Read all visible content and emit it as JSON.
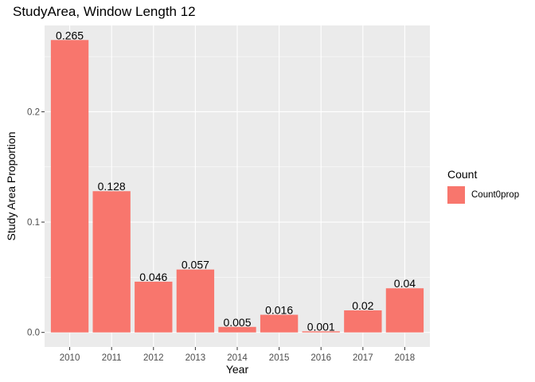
{
  "chart_data": {
    "type": "bar",
    "title": "StudyArea, Window Length 12",
    "xlabel": "Year",
    "ylabel": "Study Area Proportion",
    "categories": [
      "2010",
      "2011",
      "2012",
      "2013",
      "2014",
      "2015",
      "2016",
      "2017",
      "2018"
    ],
    "values": [
      0.265,
      0.128,
      0.046,
      0.057,
      0.005,
      0.016,
      0.001,
      0.02,
      0.04
    ],
    "data_labels": [
      "0.265",
      "0.128",
      "0.046",
      "0.057",
      "0.005",
      "0.016",
      "0.001",
      "0.02",
      "0.04"
    ],
    "y_ticks": [
      0.0,
      0.1,
      0.2
    ],
    "y_tick_labels": [
      "0.0",
      "0.1",
      "0.2"
    ],
    "ylim": [
      -0.0132,
      0.2782
    ],
    "grid": true,
    "legend": {
      "title": "Count",
      "entries": [
        "Count0prop"
      ],
      "position": "right"
    },
    "colors": {
      "bar": "#F8766D",
      "panel": "#EBEBEB",
      "grid": "#FFFFFF"
    }
  }
}
